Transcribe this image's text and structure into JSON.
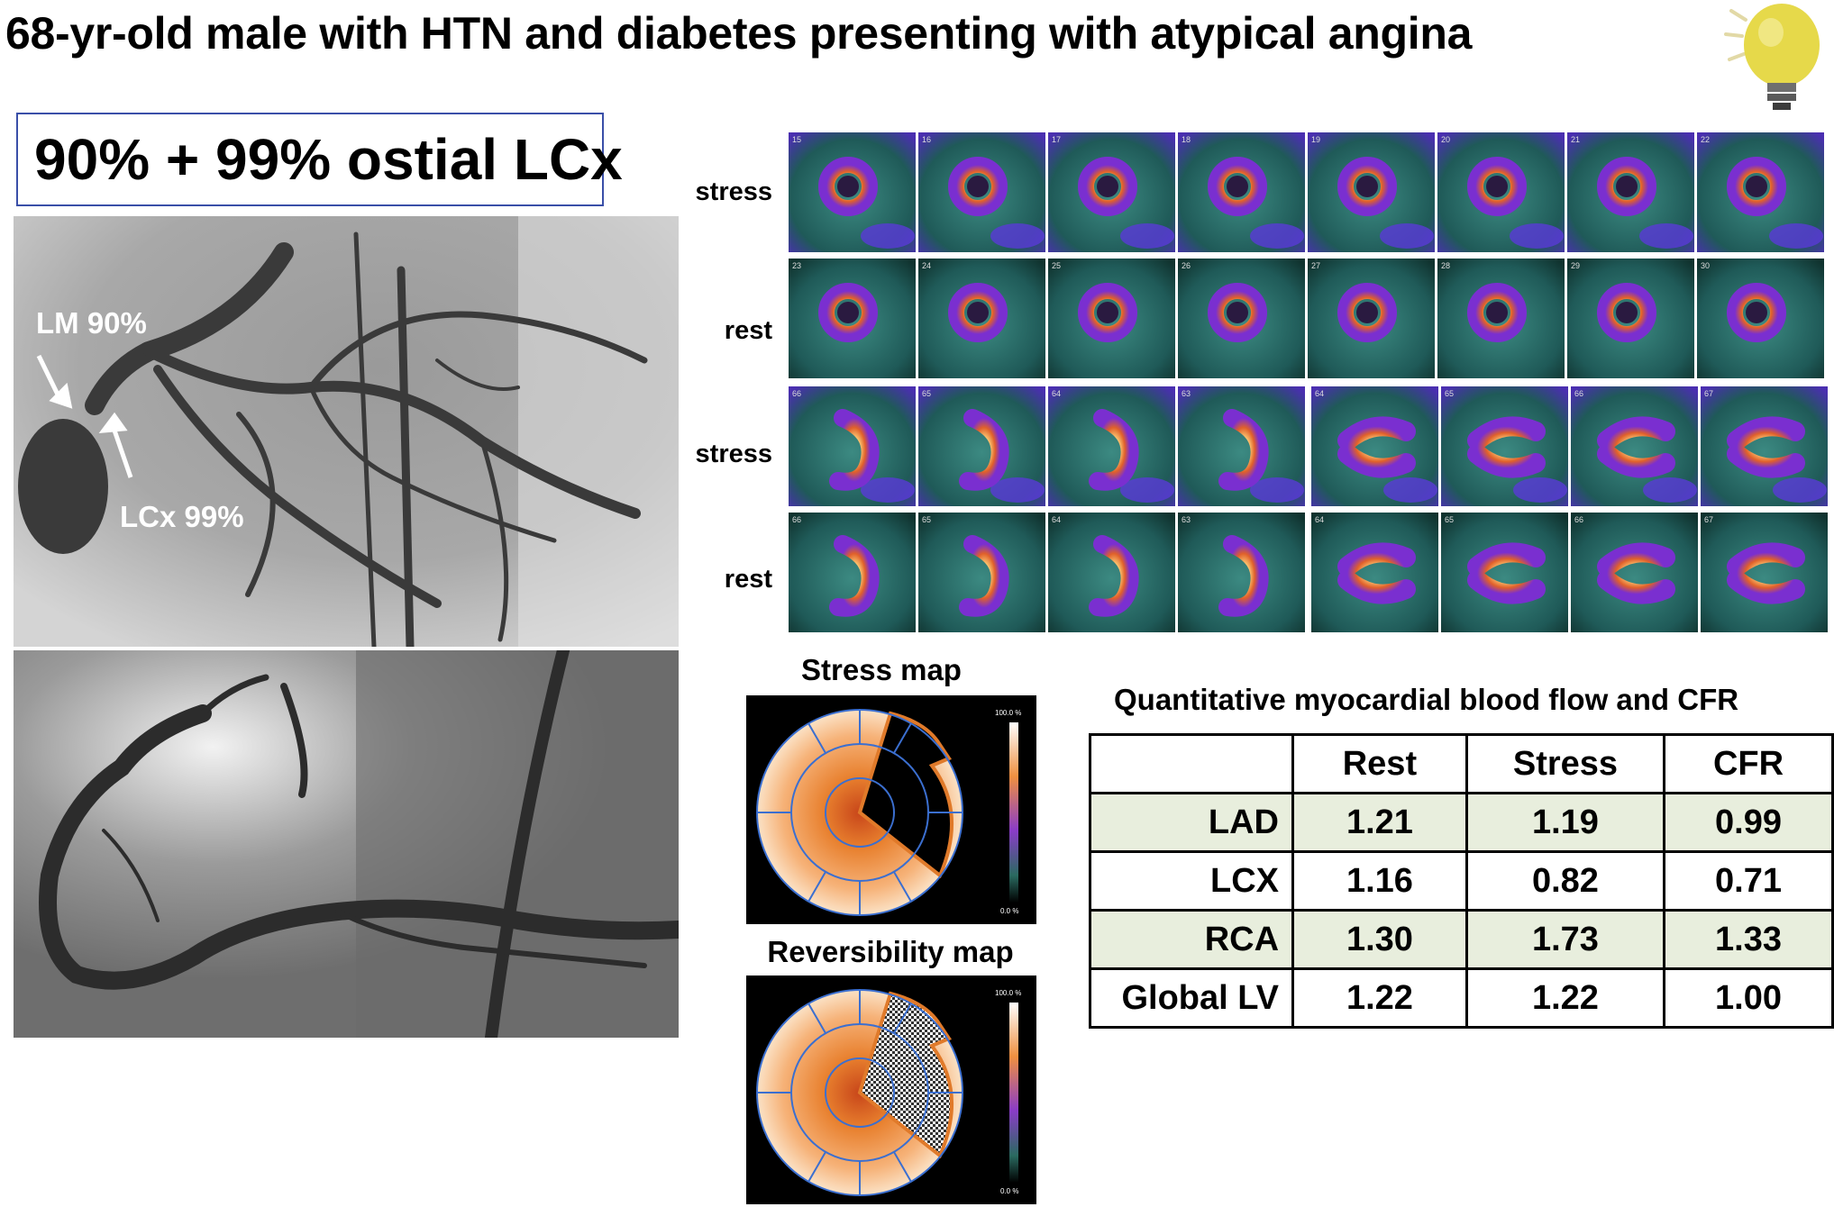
{
  "slide": {
    "title": "68-yr-old male with HTN and diabetes presenting with atypical angina"
  },
  "angiography": {
    "label": "90% + 99% ostial LCx",
    "annotations": {
      "lm": "LM 90%",
      "lcx": "LCx 99%"
    }
  },
  "spect": {
    "row_labels": [
      "stress",
      "rest",
      "stress",
      "rest"
    ],
    "frame_numbers": [
      [
        "15",
        "16",
        "17",
        "18",
        "19",
        "20",
        "21",
        "22"
      ],
      [
        "23",
        "24",
        "25",
        "26",
        "27",
        "28",
        "29",
        "30"
      ],
      [
        "66",
        "65",
        "64",
        "63",
        "64",
        "65",
        "66",
        "67"
      ],
      [
        "66",
        "65",
        "64",
        "63",
        "64",
        "65",
        "66",
        "67"
      ]
    ]
  },
  "maps": {
    "stress_title": "Stress map",
    "reversibility_title": "Reversibility map",
    "scale_top": "100.0 %",
    "scale_bottom": "0.0 %"
  },
  "mbf_table": {
    "title": "Quantitative myocardial blood flow and CFR",
    "columns": [
      "",
      "Rest",
      "Stress",
      "CFR"
    ],
    "rows": [
      {
        "territory": "LAD",
        "rest": "1.21",
        "stress": "1.19",
        "cfr": "0.99"
      },
      {
        "territory": "LCX",
        "rest": "1.16",
        "stress": "0.82",
        "cfr": "0.71"
      },
      {
        "territory": "RCA",
        "rest": "1.30",
        "stress": "1.73",
        "cfr": "1.33"
      },
      {
        "territory": "Global LV",
        "rest": "1.22",
        "stress": "1.22",
        "cfr": "1.00"
      }
    ]
  },
  "colors": {
    "box_border": "#3a4fa8",
    "table_shade": "#e8eedd",
    "polar_grid": "#3b6fd0"
  }
}
